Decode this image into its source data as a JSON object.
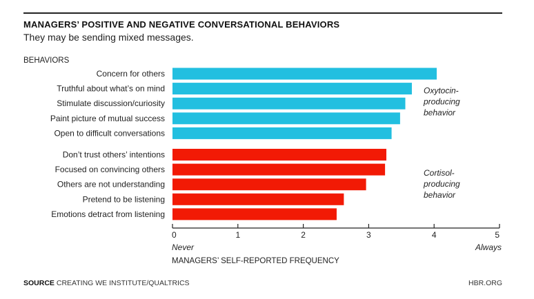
{
  "header": {
    "title": "MANAGERS’ POSITIVE AND NEGATIVE CONVERSATIONAL BEHAVIORS",
    "subtitle": "They may be sending mixed messages."
  },
  "footer": {
    "source_bold": "SOURCE",
    "source_text": "CREATING WE INSTITUTE/QUALTRICS",
    "publisher": "HBR.ORG"
  },
  "chart_data": {
    "type": "bar",
    "orientation": "horizontal",
    "category_axis_label": "BEHAVIORS",
    "xlabel": "MANAGERS’ SELF-REPORTED FREQUENCY",
    "xlim": [
      0,
      5
    ],
    "xticks": [
      0,
      1,
      2,
      3,
      4,
      5
    ],
    "x_end_labels": {
      "min": "Never",
      "max": "Always"
    },
    "grid": false,
    "groups": [
      {
        "annotation": [
          "Oxytocin-",
          "producing",
          "behavior"
        ],
        "color": "#22bfe0",
        "categories": [
          "Concern for others",
          "Truthful about what’s on mind",
          "Stimulate discussion/curiosity",
          "Paint picture of mutual success",
          "Open to difficult conversations"
        ],
        "values": [
          4.04,
          3.66,
          3.56,
          3.48,
          3.35
        ]
      },
      {
        "annotation": [
          "Cortisol-",
          "producing",
          "behavior"
        ],
        "color": "#f21a05",
        "categories": [
          "Don’t trust others’ intentions",
          "Focused on convincing others",
          "Others are not understanding",
          "Pretend to be listening",
          "Emotions detract from listening"
        ],
        "values": [
          3.27,
          3.25,
          2.96,
          2.62,
          2.51
        ]
      }
    ]
  }
}
